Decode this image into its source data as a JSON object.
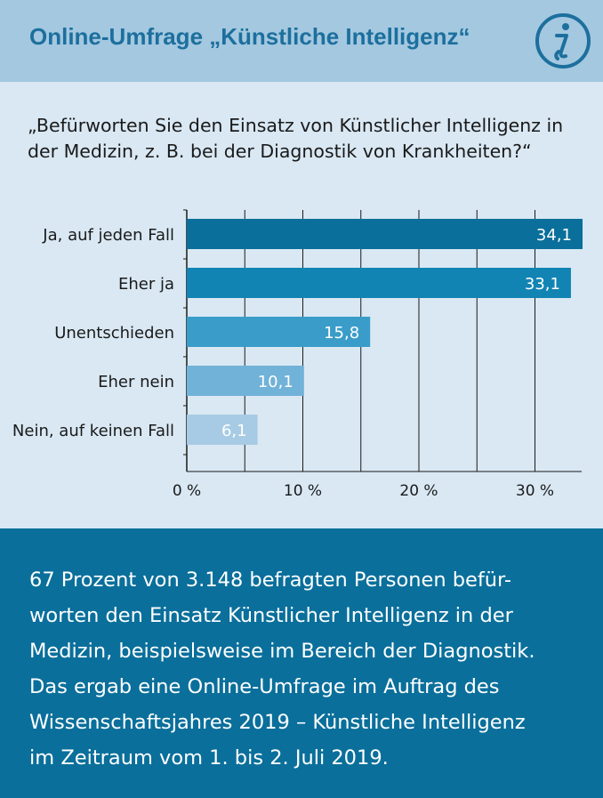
{
  "header": {
    "title": "Online-Umfrage „Künstliche Intelligenz“",
    "icon": "info-icon"
  },
  "question": "„Befürworten Sie den Einsatz von Künstlicher Intelligenz in der Medizin, z. B. bei der Diagnostik von Krankheiten?“",
  "chart_data": {
    "type": "bar",
    "orientation": "horizontal",
    "categories": [
      "Ja, auf jeden Fall",
      "Eher ja",
      "Unentschieden",
      "Eher nein",
      "Nein, auf keinen Fall"
    ],
    "values": [
      34.1,
      33.1,
      15.8,
      10.1,
      6.1
    ],
    "value_labels": [
      "34,1",
      "33,1",
      "15,8",
      "10,1",
      "6,1"
    ],
    "bar_colors": [
      "#0a6f9b",
      "#1184b4",
      "#3a9dc9",
      "#71b2d8",
      "#a7cbe4"
    ],
    "xlim": [
      0,
      34
    ],
    "xticks": [
      0,
      10,
      20,
      30
    ],
    "xtick_labels": [
      "0 %",
      "10 %",
      "20 %",
      "30 %"
    ],
    "grid": true
  },
  "footer": {
    "text_lines": [
      "67 Prozent von 3.148 befragten Personen befür-",
      "worten den Einsatz Künstlicher Intelligenz in der",
      "Medizin, beispielsweise im Bereich der Diagnostik.",
      "Das ergab eine Online-Umfrage im Auftrag des",
      "Wissenschaftsjahres 2019 – Künstliche Intelligenz",
      "im Zeitraum vom 1. bis 2. Juli 2019."
    ]
  }
}
